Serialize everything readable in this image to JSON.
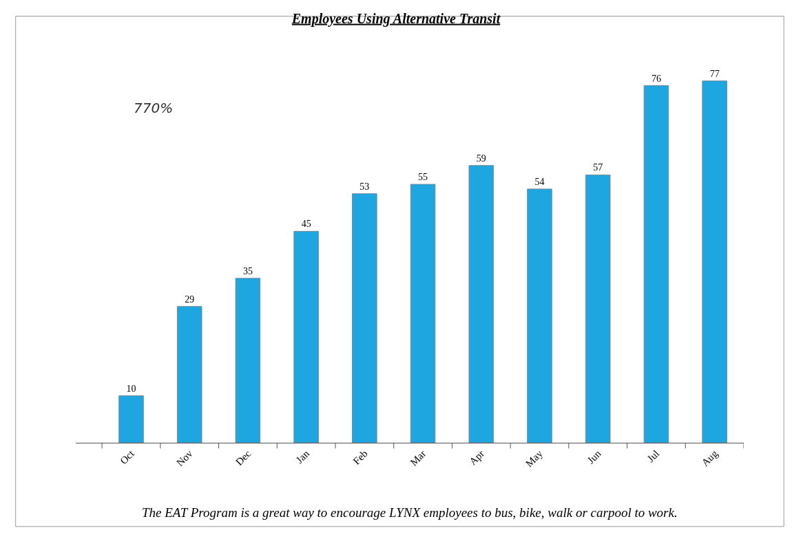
{
  "chart_data": {
    "type": "bar",
    "title": "Employees Using Alternative Transit",
    "categories": [
      "Oct",
      "Nov",
      "Dec",
      "Jan",
      "Feb",
      "Mar",
      "Apr",
      "May",
      "Jun",
      "Jul",
      "Aug"
    ],
    "values": [
      10,
      29,
      35,
      45,
      53,
      55,
      59,
      54,
      57,
      76,
      77
    ],
    "color": "#1ea6e0",
    "data_labels": true,
    "annotations": [
      "770%",
      "The EAT Program is a great way to encourage LYNX employees to bus, bike, walk or carpool to work."
    ]
  }
}
